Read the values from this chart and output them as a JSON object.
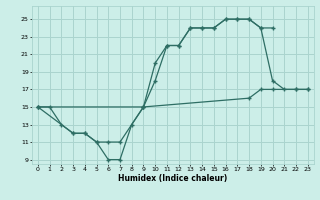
{
  "xlabel": "Humidex (Indice chaleur)",
  "bg_color": "#cceee8",
  "grid_color": "#aad4ce",
  "line_color": "#2e6e64",
  "xlim": [
    -0.5,
    23.5
  ],
  "ylim": [
    8.5,
    26.5
  ],
  "yticks": [
    9,
    11,
    13,
    15,
    17,
    19,
    21,
    23,
    25
  ],
  "xticks": [
    0,
    1,
    2,
    3,
    4,
    5,
    6,
    7,
    8,
    9,
    10,
    11,
    12,
    13,
    14,
    15,
    16,
    17,
    18,
    19,
    20,
    21,
    22,
    23
  ],
  "line1": {
    "x": [
      0,
      1,
      2,
      3,
      4,
      5,
      6,
      7,
      9,
      10,
      11,
      12,
      13,
      14,
      15,
      16,
      17,
      18,
      19,
      20,
      21,
      22,
      23
    ],
    "y": [
      15,
      15,
      13,
      12,
      12,
      11,
      11,
      11,
      15,
      20,
      22,
      22,
      24,
      24,
      24,
      25,
      25,
      25,
      24,
      18,
      17,
      17,
      17
    ]
  },
  "line2": {
    "x": [
      0,
      3,
      4,
      5,
      6,
      7,
      8,
      9,
      10,
      11,
      12,
      13,
      14,
      15,
      16,
      17,
      18,
      19,
      20
    ],
    "y": [
      15,
      12,
      12,
      11,
      9,
      9,
      13,
      15,
      18,
      22,
      22,
      24,
      24,
      24,
      25,
      25,
      25,
      24,
      24
    ]
  },
  "line3": {
    "x": [
      0,
      9,
      18,
      19,
      20,
      22,
      23
    ],
    "y": [
      15,
      15,
      16,
      17,
      17,
      17,
      17
    ]
  }
}
